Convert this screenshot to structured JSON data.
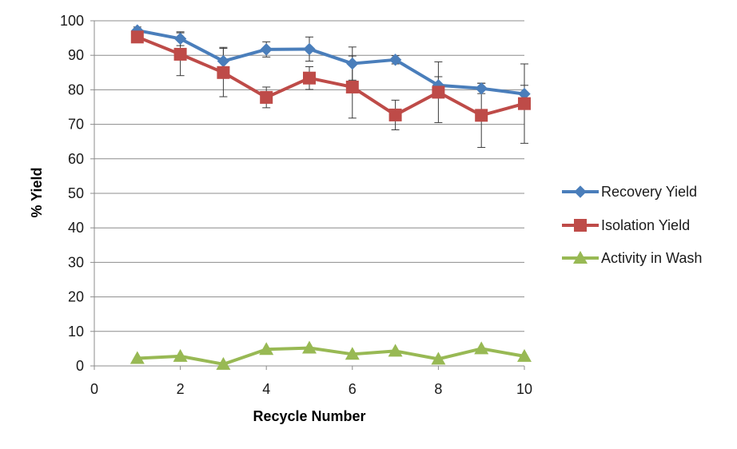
{
  "chart_data": {
    "type": "line",
    "title": "",
    "xlabel": "Recycle Number",
    "ylabel": "% Yield",
    "xlim": [
      0,
      10
    ],
    "ylim": [
      0,
      100
    ],
    "xticks": [
      0,
      2,
      4,
      6,
      8,
      10
    ],
    "yticks": [
      0,
      10,
      20,
      30,
      40,
      50,
      60,
      70,
      80,
      90,
      100
    ],
    "grid": "horizontal",
    "legend_position": "right",
    "x": [
      1,
      2,
      3,
      4,
      5,
      6,
      7,
      8,
      9,
      10
    ],
    "series": [
      {
        "name": "Recovery Yield",
        "color": "#4a7ebb",
        "marker": "diamond",
        "values": [
          97.2,
          94.8,
          88.3,
          91.7,
          91.8,
          87.6,
          88.7,
          81.3,
          80.4,
          78.8
        ],
        "error": [
          1.0,
          2.0,
          4.0,
          2.2,
          3.5,
          4.8,
          1.2,
          2.5,
          1.5,
          2.5
        ]
      },
      {
        "name": "Isolation Yield",
        "color": "#be4b48",
        "marker": "square",
        "values": [
          95.3,
          90.3,
          85.0,
          77.8,
          83.4,
          80.8,
          72.7,
          79.3,
          72.6,
          76.0
        ],
        "error": [
          0.5,
          6.2,
          7.0,
          3.0,
          3.3,
          9.0,
          4.3,
          8.8,
          9.3,
          11.5
        ]
      },
      {
        "name": "Activity in Wash",
        "color": "#98b954",
        "marker": "triangle",
        "values": [
          2.2,
          2.8,
          0.5,
          4.8,
          5.2,
          3.4,
          4.3,
          2.0,
          5.0,
          2.8
        ],
        "error": []
      }
    ]
  }
}
